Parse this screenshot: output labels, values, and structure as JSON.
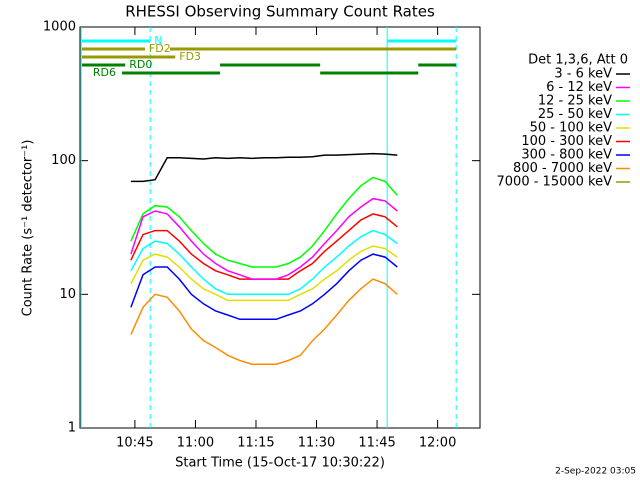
{
  "chart_data": {
    "type": "line",
    "title": "RHESSI Observing Summary Count Rates",
    "xlabel": "Start Time (15-Oct-17 10:30:22)",
    "ylabel": "Count Rate (s⁻¹ detector⁻¹)",
    "legend_title": "Det 1,3,6, Att 0",
    "footer": "2-Sep-2022 03:05",
    "ylog": true,
    "xlim": [
      631.4,
      730.5
    ],
    "ylim": [
      1,
      1000
    ],
    "xticks": [
      {
        "value": 645,
        "label": "10:45"
      },
      {
        "value": 660,
        "label": "11:00"
      },
      {
        "value": 675,
        "label": "11:15"
      },
      {
        "value": 690,
        "label": "11:30"
      },
      {
        "value": 705,
        "label": "11:45"
      },
      {
        "value": 720,
        "label": "12:00"
      }
    ],
    "yticks": [
      1,
      10,
      100,
      1000
    ],
    "x": [
      644,
      647,
      650,
      653,
      656,
      659,
      662,
      665,
      668,
      671,
      674,
      677,
      680,
      683,
      686,
      689,
      692,
      695,
      698,
      701,
      704,
      707,
      710
    ],
    "series": [
      {
        "name": "3 - 6 keV",
        "color": "#000000",
        "values": [
          70,
          70,
          72,
          105,
          105,
          104,
          103,
          105,
          104,
          105,
          104,
          105,
          105,
          106,
          106,
          107,
          110,
          110,
          111,
          112,
          113,
          112,
          110
        ]
      },
      {
        "name": "6 - 12 keV",
        "color": "#ff00ff",
        "values": [
          20,
          38,
          42,
          40,
          32,
          25,
          20,
          17,
          15,
          14,
          13,
          13,
          13,
          14,
          16,
          19,
          24,
          30,
          38,
          45,
          52,
          50,
          42
        ]
      },
      {
        "name": "12 - 25 keV",
        "color": "#00ff00",
        "values": [
          25,
          40,
          46,
          45,
          38,
          30,
          24,
          20,
          18,
          17,
          16,
          16,
          16,
          17,
          19,
          23,
          30,
          40,
          52,
          65,
          75,
          70,
          55
        ]
      },
      {
        "name": "25 - 50 keV",
        "color": "#00ffff",
        "values": [
          15,
          22,
          25,
          24,
          20,
          16,
          13,
          11,
          10,
          10,
          10,
          10,
          10,
          10,
          11,
          13,
          16,
          19,
          23,
          27,
          30,
          28,
          24
        ]
      },
      {
        "name": "50 - 100 keV",
        "color": "#e0e000",
        "values": [
          12,
          18,
          20,
          19,
          16,
          13,
          11,
          10,
          9,
          9,
          9,
          9,
          9,
          9,
          10,
          11,
          13,
          15,
          18,
          21,
          23,
          22,
          19
        ]
      },
      {
        "name": "100 - 300 keV",
        "color": "#ff0000",
        "values": [
          18,
          28,
          30,
          30,
          25,
          20,
          17,
          15,
          14,
          13,
          13,
          13,
          13,
          13,
          15,
          17,
          21,
          25,
          30,
          36,
          40,
          38,
          32
        ]
      },
      {
        "name": "300 - 800 keV",
        "color": "#0000ff",
        "values": [
          8,
          14,
          16,
          16,
          13,
          10,
          8.5,
          7.5,
          7,
          6.5,
          6.5,
          6.5,
          6.5,
          7,
          7.5,
          8.5,
          10,
          12,
          15,
          18,
          20,
          19,
          16
        ]
      },
      {
        "name": "800 - 7000 keV",
        "color": "#ff8c00",
        "values": [
          5,
          8,
          10,
          9.5,
          7.5,
          5.5,
          4.5,
          4,
          3.5,
          3.2,
          3,
          3,
          3,
          3.2,
          3.5,
          4.5,
          5.5,
          7,
          9,
          11,
          13,
          12,
          10
        ]
      },
      {
        "name": "7000 - 15000 keV",
        "color": "#999900",
        "values": [
          null,
          null,
          null,
          null,
          null,
          null,
          null,
          null,
          null,
          null,
          null,
          null,
          null,
          null,
          null,
          null,
          null,
          null,
          null,
          null,
          null,
          null,
          null
        ]
      }
    ],
    "vlines": [
      {
        "x": 631.7,
        "color": "#00ffff",
        "style": "solid"
      },
      {
        "x": 648.8,
        "color": "#00ffff",
        "style": "dashed"
      },
      {
        "x": 707.5,
        "color": "#00ffff",
        "style": "solid"
      },
      {
        "x": 724.6,
        "color": "#00ffff",
        "style": "dashed"
      }
    ],
    "annotations": [
      {
        "label": "N",
        "color": "#00ffff",
        "segments": [
          [
            631.9,
            648.8
          ],
          [
            707.5,
            724.6
          ]
        ]
      },
      {
        "label": "FD2",
        "color": "#999900",
        "segments": [
          [
            631.9,
            647.5
          ],
          [
            653.7,
            724.6
          ]
        ]
      },
      {
        "label": "FD3",
        "color": "#999900",
        "segments": [
          [
            631.9,
            655
          ]
        ]
      },
      {
        "label": "RD0",
        "color": "#008000",
        "segments": [
          [
            631.9,
            642.6
          ],
          [
            666.1,
            690.9
          ],
          [
            715.2,
            724.6
          ]
        ]
      },
      {
        "label": "RD6",
        "color": "#008000",
        "segments": [
          [
            641.8,
            666.1
          ],
          [
            690.9,
            715.2
          ]
        ]
      }
    ]
  }
}
